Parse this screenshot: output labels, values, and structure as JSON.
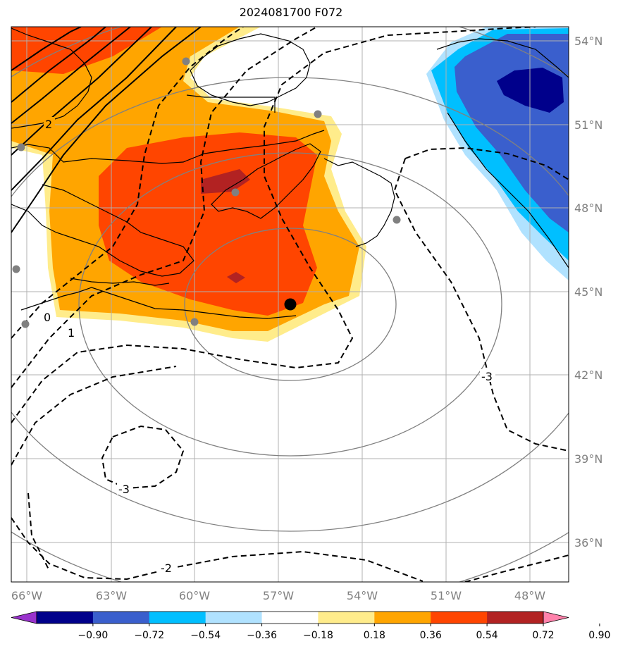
{
  "title": "2024081700 F072",
  "map": {
    "lon_labels": [
      "66°W",
      "63°W",
      "60°W",
      "57°W",
      "54°W",
      "51°W",
      "48°W"
    ],
    "lat_labels": [
      "54°N",
      "51°N",
      "48°N",
      "45°N",
      "42°N",
      "39°N",
      "36°N"
    ],
    "contour_labels": [
      "2",
      "0",
      "1",
      "-3",
      "-3",
      "-2"
    ],
    "center_marker_color": "#000000",
    "station_marker_color": "#808080"
  },
  "colorbar": {
    "ticks": [
      "−0.90",
      "−0.72",
      "−0.54",
      "−0.36",
      "−0.18",
      "0.18",
      "0.36",
      "0.54",
      "0.72",
      "0.90"
    ],
    "colors": [
      "#9932cc",
      "#00008b",
      "#3a5fcd",
      "#00bfff",
      "#b0e2ff",
      "#ffffff",
      "#ffec8b",
      "#ffa500",
      "#ff4500",
      "#b22222",
      "#ff82ab"
    ]
  }
}
